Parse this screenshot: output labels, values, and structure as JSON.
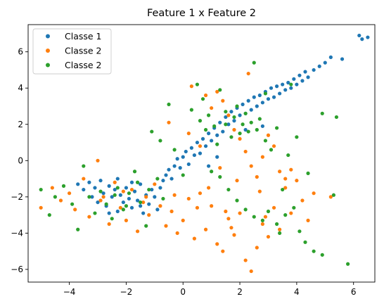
{
  "chart_data": {
    "type": "scatter",
    "title": "Feature 1 x Feature 2",
    "xlabel": "",
    "ylabel": "",
    "xlim": [
      -5.45,
      6.75
    ],
    "ylim": [
      -6.7,
      7.5
    ],
    "xticks": [
      -4,
      -2,
      0,
      2,
      4,
      6
    ],
    "yticks": [
      -6,
      -4,
      -2,
      0,
      2,
      4,
      6
    ],
    "grid": false,
    "legend_position": "top-left",
    "series": [
      {
        "name": "Classe 1",
        "color": "#1f77b4",
        "points": [
          [
            -3.7,
            -1.3
          ],
          [
            -3.5,
            -1.6
          ],
          [
            -3.3,
            -1.2
          ],
          [
            -3.2,
            -2.0
          ],
          [
            -3.1,
            -1.5
          ],
          [
            -3.0,
            -2.3
          ],
          [
            -2.9,
            -1.1
          ],
          [
            -2.8,
            -1.8
          ],
          [
            -2.7,
            -2.5
          ],
          [
            -2.6,
            -1.4
          ],
          [
            -2.5,
            -2.0
          ],
          [
            -2.4,
            -1.6
          ],
          [
            -2.3,
            -2.8
          ],
          [
            -2.2,
            -1.9
          ],
          [
            -2.1,
            -2.3
          ],
          [
            -2.0,
            -1.5
          ],
          [
            -1.9,
            -2.1
          ],
          [
            -1.8,
            -2.6
          ],
          [
            -1.7,
            -1.7
          ],
          [
            -1.6,
            -2.2
          ],
          [
            -1.5,
            -1.3
          ],
          [
            -1.4,
            -2.9
          ],
          [
            -1.3,
            -1.9
          ],
          [
            -1.2,
            -2.4
          ],
          [
            -1.1,
            -1.6
          ],
          [
            -1.0,
            -2.0
          ],
          [
            -0.9,
            -2.7
          ],
          [
            -0.8,
            -1.5
          ],
          [
            -0.7,
            -1.1
          ],
          [
            -0.6,
            -0.8
          ],
          [
            -0.5,
            -0.5
          ],
          [
            -0.4,
            -1.0
          ],
          [
            -0.3,
            -0.3
          ],
          [
            -0.2,
            0.1
          ],
          [
            -0.1,
            -0.4
          ],
          [
            0.0,
            0.2
          ],
          [
            0.1,
            0.5
          ],
          [
            0.2,
            -0.2
          ],
          [
            0.3,
            0.7
          ],
          [
            0.4,
            0.3
          ],
          [
            0.5,
            1.0
          ],
          [
            0.6,
            0.4
          ],
          [
            0.7,
            1.2
          ],
          [
            0.8,
            0.8
          ],
          [
            0.9,
            1.5
          ],
          [
            1.0,
            1.1
          ],
          [
            1.1,
            1.8
          ],
          [
            1.2,
            1.4
          ],
          [
            1.3,
            2.1
          ],
          [
            1.4,
            1.6
          ],
          [
            1.5,
            2.4
          ],
          [
            1.6,
            2.0
          ],
          [
            1.7,
            2.7
          ],
          [
            1.8,
            2.2
          ],
          [
            1.9,
            2.9
          ],
          [
            2.0,
            2.5
          ],
          [
            2.1,
            3.1
          ],
          [
            2.2,
            2.6
          ],
          [
            2.3,
            3.3
          ],
          [
            2.4,
            2.8
          ],
          [
            2.5,
            3.5
          ],
          [
            2.6,
            3.0
          ],
          [
            2.7,
            3.6
          ],
          [
            2.8,
            3.2
          ],
          [
            2.9,
            3.8
          ],
          [
            3.0,
            3.4
          ],
          [
            3.1,
            4.0
          ],
          [
            3.2,
            3.5
          ],
          [
            3.3,
            4.1
          ],
          [
            3.4,
            3.7
          ],
          [
            3.5,
            4.2
          ],
          [
            3.6,
            3.9
          ],
          [
            3.7,
            4.3
          ],
          [
            3.8,
            4.0
          ],
          [
            3.9,
            4.5
          ],
          [
            4.0,
            4.2
          ],
          [
            4.1,
            4.7
          ],
          [
            4.2,
            4.4
          ],
          [
            4.3,
            4.9
          ],
          [
            4.4,
            4.6
          ],
          [
            4.6,
            5.0
          ],
          [
            4.8,
            5.2
          ],
          [
            5.0,
            5.4
          ],
          [
            5.2,
            5.7
          ],
          [
            5.6,
            5.6
          ],
          [
            6.2,
            6.9
          ],
          [
            6.3,
            6.7
          ],
          [
            6.5,
            6.8
          ],
          [
            -2.3,
            -1.0
          ],
          [
            -1.8,
            -1.2
          ],
          [
            -2.6,
            -2.9
          ],
          [
            -1.5,
            -2.5
          ],
          [
            1.2,
            0.2
          ],
          [
            0.9,
            -0.3
          ],
          [
            2.2,
            1.7
          ],
          [
            2.8,
            1.9
          ]
        ]
      },
      {
        "name": "Classe 2",
        "color": "#ff7f0e",
        "points": [
          [
            -5.0,
            -2.6
          ],
          [
            -4.6,
            -1.5
          ],
          [
            -4.3,
            -2.2
          ],
          [
            -4.0,
            -1.8
          ],
          [
            -3.8,
            -2.7
          ],
          [
            -3.5,
            -1.0
          ],
          [
            -3.3,
            -3.1
          ],
          [
            -3.0,
            0.0
          ],
          [
            -2.8,
            -2.0
          ],
          [
            -2.6,
            -3.5
          ],
          [
            -2.4,
            -1.2
          ],
          [
            -2.2,
            -2.6
          ],
          [
            -2.0,
            -3.3
          ],
          [
            -1.8,
            -1.6
          ],
          [
            -1.6,
            -3.9
          ],
          [
            -1.4,
            -2.3
          ],
          [
            -1.2,
            -3.0
          ],
          [
            -1.0,
            -1.3
          ],
          [
            -0.8,
            -2.5
          ],
          [
            -0.6,
            -3.6
          ],
          [
            -0.4,
            -2.8
          ],
          [
            -0.2,
            -4.0
          ],
          [
            0.0,
            -3.3
          ],
          [
            0.2,
            -2.1
          ],
          [
            0.4,
            -4.3
          ],
          [
            0.6,
            -1.8
          ],
          [
            0.8,
            -3.8
          ],
          [
            1.0,
            -2.5
          ],
          [
            1.2,
            -4.6
          ],
          [
            1.4,
            -5.0
          ],
          [
            1.6,
            -3.2
          ],
          [
            1.8,
            -4.1
          ],
          [
            2.0,
            -2.9
          ],
          [
            2.2,
            -5.5
          ],
          [
            2.4,
            -6.1
          ],
          [
            2.6,
            -4.8
          ],
          [
            2.8,
            -3.5
          ],
          [
            3.0,
            -4.2
          ],
          [
            3.2,
            -2.6
          ],
          [
            3.4,
            -3.8
          ],
          [
            3.6,
            -1.5
          ],
          [
            3.8,
            -2.9
          ],
          [
            4.0,
            -1.1
          ],
          [
            4.2,
            -2.2
          ],
          [
            4.4,
            -3.3
          ],
          [
            4.6,
            -1.8
          ],
          [
            5.2,
            -2.0
          ],
          [
            0.5,
            -2.6
          ],
          [
            0.3,
            4.1
          ],
          [
            0.8,
            3.6
          ],
          [
            1.0,
            2.9
          ],
          [
            1.2,
            3.8
          ],
          [
            1.4,
            3.3
          ],
          [
            1.6,
            2.5
          ],
          [
            1.8,
            1.7
          ],
          [
            2.0,
            1.2
          ],
          [
            2.2,
            0.5
          ],
          [
            2.4,
            -0.3
          ],
          [
            2.6,
            -0.9
          ],
          [
            2.8,
            0.2
          ],
          [
            3.0,
            1.4
          ],
          [
            3.2,
            0.8
          ],
          [
            3.4,
            -0.6
          ],
          [
            3.6,
            -1.0
          ],
          [
            3.8,
            -0.5
          ],
          [
            -0.5,
            2.1
          ],
          [
            0.2,
            1.5
          ],
          [
            0.6,
            0.8
          ],
          [
            1.9,
            -1.1
          ],
          [
            1.3,
            -0.4
          ],
          [
            2.3,
            4.8
          ],
          [
            2.7,
            -1.7
          ],
          [
            -2.9,
            -2.2
          ],
          [
            -2.1,
            -1.7
          ],
          [
            -1.3,
            -2.0
          ],
          [
            -0.3,
            -1.9
          ],
          [
            0.9,
            -1.5
          ],
          [
            1.5,
            -2.8
          ],
          [
            1.7,
            -3.7
          ],
          [
            2.9,
            -3.1
          ]
        ]
      },
      {
        "name": "Classe 2",
        "color": "#2ca02c",
        "points": [
          [
            -5.0,
            -1.6
          ],
          [
            -4.7,
            -3.0
          ],
          [
            -4.5,
            -2.0
          ],
          [
            -4.2,
            -1.4
          ],
          [
            -3.9,
            -2.4
          ],
          [
            -3.7,
            -3.8
          ],
          [
            -3.5,
            -0.3
          ],
          [
            -3.3,
            -2.0
          ],
          [
            -3.1,
            -2.9
          ],
          [
            -2.9,
            -1.7
          ],
          [
            -2.7,
            -2.4
          ],
          [
            -2.5,
            -3.2
          ],
          [
            -2.3,
            -1.5
          ],
          [
            -2.1,
            -2.7
          ],
          [
            -1.9,
            -1.8
          ],
          [
            -1.7,
            -0.6
          ],
          [
            -1.5,
            -2.3
          ],
          [
            -1.3,
            -3.6
          ],
          [
            -1.1,
            1.6
          ],
          [
            -0.9,
            -1.0
          ],
          [
            -0.7,
            -2.1
          ],
          [
            -0.5,
            3.1
          ],
          [
            -0.3,
            0.6
          ],
          [
            0.0,
            -0.8
          ],
          [
            0.3,
            2.8
          ],
          [
            0.5,
            4.2
          ],
          [
            0.7,
            3.4
          ],
          [
            0.9,
            2.5
          ],
          [
            1.1,
            1.9
          ],
          [
            1.3,
            3.9
          ],
          [
            1.5,
            2.7
          ],
          [
            1.7,
            1.3
          ],
          [
            1.9,
            3.0
          ],
          [
            2.1,
            2.0
          ],
          [
            2.3,
            1.6
          ],
          [
            2.5,
            5.4
          ],
          [
            2.7,
            2.3
          ],
          [
            2.9,
            1.1
          ],
          [
            3.1,
            0.6
          ],
          [
            3.3,
            1.8
          ],
          [
            3.5,
            -1.6
          ],
          [
            3.7,
            0.3
          ],
          [
            4.0,
            1.3
          ],
          [
            4.4,
            -0.7
          ],
          [
            4.9,
            2.6
          ],
          [
            5.3,
            -1.9
          ],
          [
            5.4,
            2.4
          ],
          [
            5.8,
            -5.7
          ],
          [
            1.0,
            -0.6
          ],
          [
            1.3,
            -0.9
          ],
          [
            1.6,
            -1.6
          ],
          [
            1.9,
            -2.2
          ],
          [
            2.2,
            -2.7
          ],
          [
            2.5,
            -3.1
          ],
          [
            2.8,
            -3.3
          ],
          [
            3.0,
            -2.8
          ],
          [
            3.3,
            -3.5
          ],
          [
            3.6,
            -3.0
          ],
          [
            3.9,
            -2.6
          ],
          [
            4.1,
            -3.9
          ],
          [
            4.3,
            -4.5
          ],
          [
            4.6,
            -5.0
          ],
          [
            4.9,
            -5.2
          ],
          [
            3.4,
            -4.0
          ],
          [
            -2.0,
            -2.5
          ],
          [
            -1.6,
            -1.2
          ],
          [
            -2.4,
            -1.9
          ],
          [
            -1.2,
            -1.6
          ],
          [
            1.8,
            2.4
          ],
          [
            2.0,
            1.5
          ],
          [
            2.4,
            2.1
          ],
          [
            2.6,
            1.7
          ],
          [
            1.5,
            2.0
          ],
          [
            2.2,
            2.6
          ],
          [
            0.8,
            1.7
          ],
          [
            3.8,
            4.2
          ],
          [
            2.9,
            3.7
          ],
          [
            1.2,
            0.9
          ],
          [
            0.6,
            2.2
          ],
          [
            -0.8,
            1.1
          ]
        ]
      }
    ]
  }
}
